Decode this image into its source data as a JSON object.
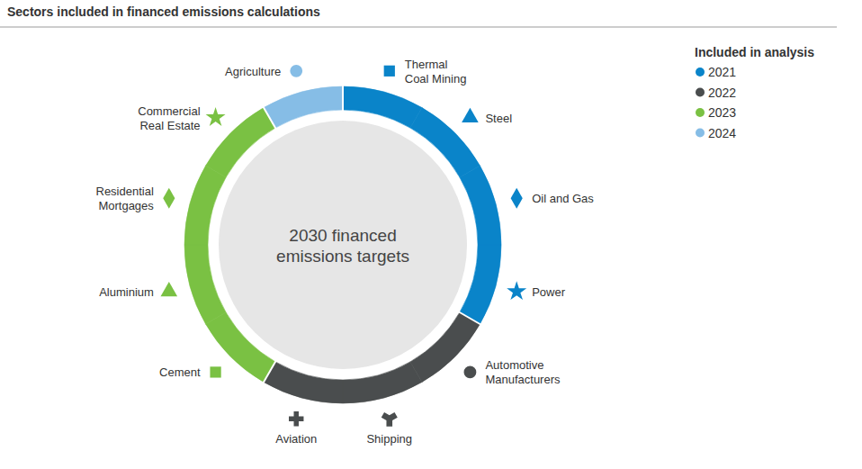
{
  "chart_data": {
    "type": "donut",
    "title": "Sectors included in financed emissions calculations",
    "center_text": [
      "2030 financed",
      "emissions targets"
    ],
    "legend_title": "Included in analysis",
    "legend": "top-right",
    "series": [
      {
        "name": "2021",
        "color": "#0a84c9",
        "categories": [
          "Thermal Coal Mining",
          "Steel",
          "Oil and Gas",
          "Power"
        ],
        "values": [
          1,
          1,
          1,
          1
        ]
      },
      {
        "name": "2022",
        "color": "#4a4d4e",
        "categories": [
          "Automotive Manufacturers",
          "Shipping",
          "Aviation"
        ],
        "values": [
          1,
          1,
          1
        ]
      },
      {
        "name": "2023",
        "color": "#7ac143",
        "categories": [
          "Cement",
          "Aluminium",
          "Residential Mortgages",
          "Commercial Real Estate"
        ],
        "values": [
          1,
          1,
          1,
          1
        ]
      },
      {
        "name": "2024",
        "color": "#86bde6",
        "categories": [
          "Agriculture"
        ],
        "values": [
          1
        ]
      }
    ]
  }
}
